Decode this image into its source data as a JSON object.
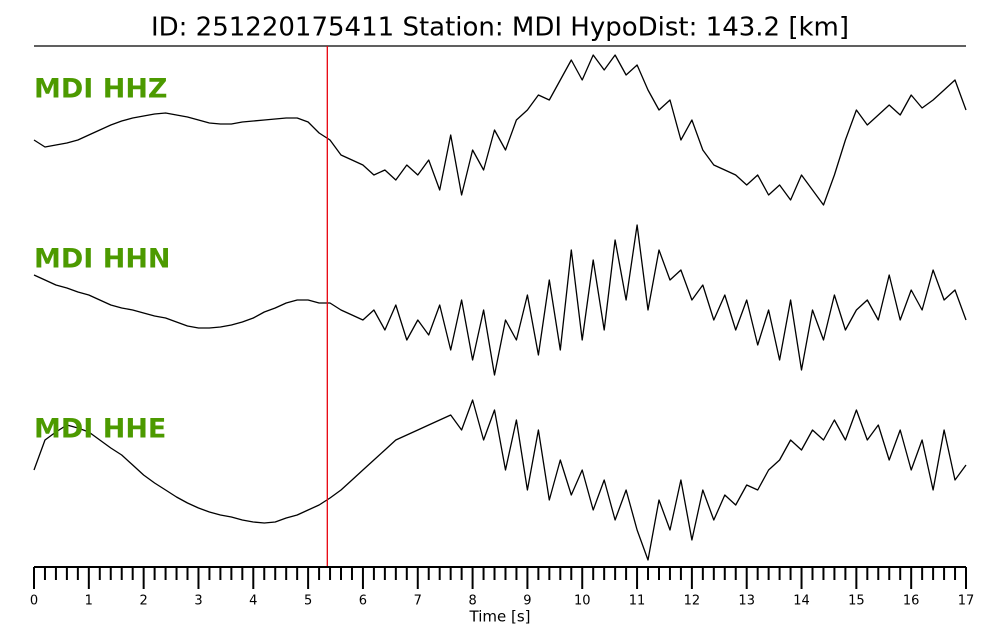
{
  "chart_data": {
    "type": "line",
    "title": "ID: 251220175411   Station: MDI   HypoDist:   143.2 [km]",
    "xlabel": "Time [s]",
    "xlim": [
      0,
      17
    ],
    "xticks": [
      0,
      1,
      2,
      3,
      4,
      5,
      6,
      7,
      8,
      9,
      10,
      11,
      12,
      13,
      14,
      15,
      16,
      17
    ],
    "xminorticks": [
      0.2,
      0.4,
      0.6,
      0.8,
      1.2,
      1.4,
      1.6,
      1.8,
      2.2,
      2.4,
      2.6,
      2.8,
      3.2,
      3.4,
      3.6,
      3.8,
      4.2,
      4.4,
      4.6,
      4.8,
      5.2,
      5.4,
      5.6,
      5.8,
      6.2,
      6.4,
      6.6,
      6.8,
      7.2,
      7.4,
      7.6,
      7.8,
      8.2,
      8.4,
      8.6,
      8.8,
      9.2,
      9.4,
      9.6,
      9.8,
      10.2,
      10.4,
      10.6,
      10.8,
      11.2,
      11.4,
      11.6,
      11.8,
      12.2,
      12.4,
      12.6,
      12.8,
      13.2,
      13.4,
      13.6,
      13.8,
      14.2,
      14.4,
      14.6,
      14.8,
      15.2,
      15.4,
      15.6,
      15.8,
      16.2,
      16.4,
      16.6,
      16.8
    ],
    "ylim": [
      -90,
      90
    ],
    "pick_time": 5.35,
    "pick_color": "#e8000b",
    "label_color": "#4c9a00",
    "x": [
      0,
      0.2,
      0.4,
      0.6,
      0.8,
      1,
      1.2,
      1.4,
      1.6,
      1.8,
      2,
      2.2,
      2.4,
      2.6,
      2.8,
      3,
      3.2,
      3.4,
      3.6,
      3.8,
      4,
      4.2,
      4.4,
      4.6,
      4.8,
      5,
      5.2,
      5.4,
      5.6,
      5.8,
      6,
      6.2,
      6.4,
      6.6,
      6.8,
      7,
      7.2,
      7.4,
      7.6,
      7.8,
      8,
      8.2,
      8.4,
      8.6,
      8.8,
      9,
      9.2,
      9.4,
      9.6,
      9.8,
      10,
      10.2,
      10.4,
      10.6,
      10.8,
      11,
      11.2,
      11.4,
      11.6,
      11.8,
      12,
      12.2,
      12.4,
      12.6,
      12.8,
      13,
      13.2,
      13.4,
      13.6,
      13.8,
      14,
      14.2,
      14.4,
      14.6,
      14.8,
      15,
      15.2,
      15.4,
      15.6,
      15.8,
      16,
      16.2,
      16.4,
      16.6,
      16.8,
      17
    ],
    "series": [
      {
        "name": "MDI HHZ",
        "color": "#000000",
        "values": [
          -8,
          -15,
          -13,
          -11,
          -8,
          -3,
          2,
          7,
          11,
          14,
          16,
          18,
          19,
          17,
          15,
          12,
          9,
          8,
          8,
          10,
          11,
          12,
          13,
          14,
          14,
          10,
          -1,
          -8,
          -23,
          -28,
          -33,
          -43,
          -38,
          -48,
          -33,
          -43,
          -28,
          -58,
          -3,
          -63,
          -18,
          -38,
          2,
          -18,
          12,
          22,
          37,
          32,
          52,
          72,
          52,
          77,
          62,
          77,
          57,
          67,
          42,
          22,
          32,
          -8,
          12,
          -18,
          -33,
          -38,
          -43,
          -53,
          -43,
          -63,
          -53,
          -68,
          -43,
          -58,
          -73,
          -43,
          -8,
          22,
          7,
          17,
          27,
          17,
          37,
          24,
          32,
          42,
          52,
          22
        ]
      },
      {
        "name": "MDI HHN",
        "color": "#000000",
        "values": [
          27,
          22,
          17,
          14,
          10,
          7,
          2,
          -3,
          -6,
          -8,
          -11,
          -14,
          -16,
          -20,
          -24,
          -26,
          -26,
          -25,
          -23,
          -20,
          -16,
          -10,
          -6,
          -1,
          2,
          2,
          -1,
          -1,
          -8,
          -13,
          -18,
          -8,
          -28,
          -3,
          -38,
          -18,
          -33,
          -3,
          -48,
          2,
          -58,
          -8,
          -73,
          -18,
          -38,
          7,
          -53,
          22,
          -48,
          52,
          -38,
          42,
          -28,
          62,
          2,
          77,
          -8,
          52,
          22,
          32,
          2,
          17,
          -18,
          7,
          -28,
          2,
          -43,
          -8,
          -58,
          2,
          -68,
          -8,
          -38,
          7,
          -28,
          -8,
          2,
          -18,
          27,
          -18,
          12,
          -8,
          32,
          2,
          12,
          -18
        ]
      },
      {
        "name": "MDI HHE",
        "color": "#000000",
        "values": [
          2,
          32,
          40,
          47,
          44,
          40,
          32,
          24,
          17,
          7,
          -3,
          -11,
          -18,
          -25,
          -31,
          -36,
          -40,
          -43,
          -45,
          -48,
          -50,
          -51,
          -50,
          -46,
          -43,
          -38,
          -33,
          -26,
          -18,
          -8,
          2,
          12,
          22,
          32,
          37,
          42,
          47,
          52,
          57,
          42,
          72,
          32,
          62,
          2,
          52,
          -18,
          42,
          -28,
          12,
          -23,
          2,
          -38,
          -8,
          -48,
          -18,
          -58,
          -88,
          -28,
          -58,
          -8,
          -68,
          -18,
          -48,
          -23,
          -33,
          -13,
          -18,
          2,
          12,
          32,
          22,
          42,
          32,
          52,
          32,
          62,
          32,
          47,
          12,
          42,
          2,
          32,
          -18,
          42,
          -8,
          7
        ]
      }
    ]
  }
}
